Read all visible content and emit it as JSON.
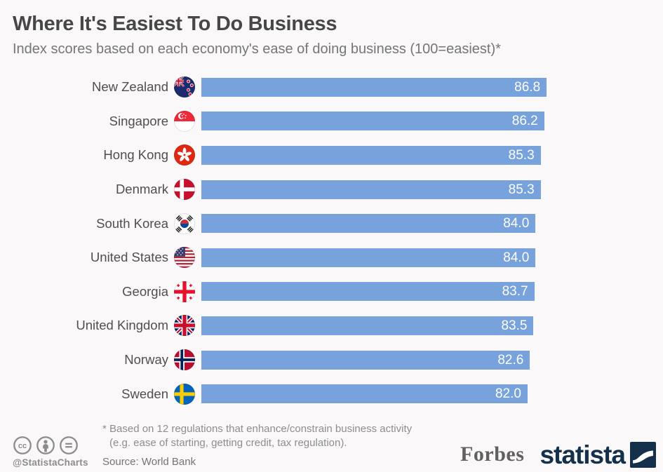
{
  "header": {
    "title": "Where It's Easiest To Do Business",
    "subtitle": "Index scores based on each economy's ease of doing business (100=easiest)*"
  },
  "chart_data": {
    "type": "bar",
    "orientation": "horizontal",
    "title": "Where It's Easiest To Do Business",
    "subtitle": "Index scores based on each economy's ease of doing business (100=easiest)*",
    "value_range": [
      0,
      100
    ],
    "bar_color": "#77a2db",
    "value_label_color": "#fdfefe",
    "rows": [
      {
        "country": "New Zealand",
        "value": 86.8,
        "value_label": "86.8",
        "flag": "nz"
      },
      {
        "country": "Singapore",
        "value": 86.2,
        "value_label": "86.2",
        "flag": "sg"
      },
      {
        "country": "Hong Kong",
        "value": 85.3,
        "value_label": "85.3",
        "flag": "hk"
      },
      {
        "country": "Denmark",
        "value": 85.3,
        "value_label": "85.3",
        "flag": "dk"
      },
      {
        "country": "South Korea",
        "value": 84.0,
        "value_label": "84.0",
        "flag": "kr"
      },
      {
        "country": "United States",
        "value": 84.0,
        "value_label": "84.0",
        "flag": "us"
      },
      {
        "country": "Georgia",
        "value": 83.7,
        "value_label": "83.7",
        "flag": "ge"
      },
      {
        "country": "United Kingdom",
        "value": 83.5,
        "value_label": "83.5",
        "flag": "gb"
      },
      {
        "country": "Norway",
        "value": 82.6,
        "value_label": "82.6",
        "flag": "no"
      },
      {
        "country": "Sweden",
        "value": 82.0,
        "value_label": "82.0",
        "flag": "se"
      }
    ]
  },
  "footer": {
    "license_icons": [
      "cc-icon",
      "attribution-icon",
      "nd-icon"
    ],
    "handle": "@StatistaCharts",
    "footnote_line1": "* Based on 12 regulations that enhance/constrain business activity",
    "footnote_line2": "(e.g. ease of starting, getting credit, tax regulation).",
    "source": "Source: World Bank",
    "brands": {
      "forbes": "Forbes",
      "statista": "statista"
    }
  },
  "colors": {
    "background": "#faf8f9",
    "bar": "#77a2db",
    "title": "#474747",
    "subtitle": "#767676",
    "footer_gray": "#8e8e8e",
    "statista_navy": "#14304a",
    "forbes_gray": "#616161"
  }
}
